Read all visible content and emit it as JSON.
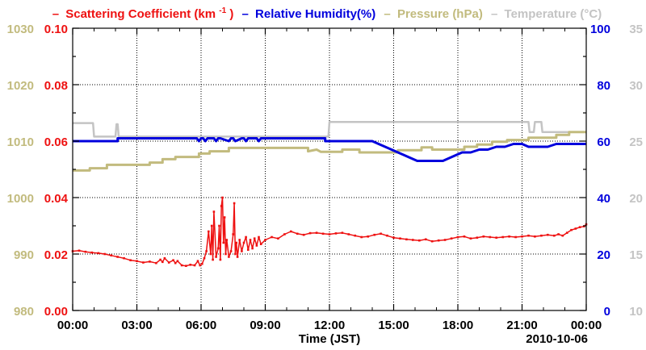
{
  "colors": {
    "scattering": "#ee1111",
    "humidity": "#0000dd",
    "pressure": "#c2bb7e",
    "temperature": "#c4c4c4",
    "axis": "#000000"
  },
  "legend": {
    "dash": "–",
    "scattering_label": "Scattering Coefficient (km",
    "scattering_sup": "-1",
    "scattering_close": ")",
    "humidity_label": "Relative Humidity(%)",
    "pressure_label": "Pressure (hPa)",
    "temperature_label": "Temperature (°C)"
  },
  "chart_data": {
    "type": "line",
    "xlabel": "Time (JST)",
    "date_label": "2010-10-06",
    "x_unit": "hours",
    "xlim": [
      0,
      24
    ],
    "x_ticks": [
      0,
      3,
      6,
      9,
      12,
      15,
      18,
      21,
      24
    ],
    "x_tick_labels": [
      "00:00",
      "03:00",
      "06:00",
      "09:00",
      "12:00",
      "15:00",
      "18:00",
      "21:00",
      "00:00"
    ],
    "grid": true,
    "axes": {
      "scattering": {
        "range": [
          0,
          0.1
        ],
        "ticks": [
          "0.00",
          "0.02",
          "0.04",
          "0.06",
          "0.08",
          "0.10"
        ],
        "side": "left-inner"
      },
      "pressure": {
        "range": [
          980,
          1030
        ],
        "ticks": [
          "980",
          "990",
          "1000",
          "1010",
          "1020",
          "1030"
        ],
        "side": "left-outer"
      },
      "humidity": {
        "range": [
          0,
          100
        ],
        "ticks": [
          "0",
          "20",
          "40",
          "60",
          "80",
          "100"
        ],
        "side": "right-inner"
      },
      "temperature": {
        "range": [
          10,
          35
        ],
        "ticks": [
          "10",
          "15",
          "20",
          "25",
          "30",
          "35"
        ],
        "side": "right-outer"
      }
    },
    "series": [
      {
        "name": "Temperature",
        "axis": "temperature",
        "x": [
          0,
          0.05,
          0.95,
          1.0,
          2.0,
          2.05,
          2.1,
          2.15,
          11.95,
          12.0,
          21.3,
          21.35,
          21.55,
          21.6,
          21.9,
          21.95,
          24.0
        ],
        "values": [
          26.6,
          26.6,
          26.6,
          25.4,
          25.4,
          26.5,
          26.5,
          25.4,
          25.4,
          26.7,
          26.7,
          25.8,
          25.8,
          26.7,
          26.7,
          25.8,
          25.8
        ]
      },
      {
        "name": "Pressure",
        "axis": "pressure",
        "x": [
          0,
          0.8,
          0.8,
          1.6,
          1.6,
          3.6,
          3.6,
          4.2,
          4.2,
          4.8,
          4.8,
          5.9,
          5.9,
          6.4,
          6.4,
          7.3,
          7.3,
          11.0,
          11.0,
          11.4,
          11.6,
          12.6,
          12.6,
          13.4,
          13.4,
          15.2,
          15.2,
          16.3,
          16.3,
          16.8,
          16.8,
          18.3,
          18.3,
          18.9,
          18.9,
          19.6,
          19.6,
          20.3,
          20.3,
          21.3,
          21.3,
          22.6,
          22.6,
          23.2,
          23.2,
          24.0
        ],
        "values": [
          1004.8,
          1004.8,
          1005.2,
          1005.2,
          1005.8,
          1005.8,
          1006.2,
          1006.2,
          1006.8,
          1006.8,
          1007.2,
          1007.2,
          1007.8,
          1007.8,
          1008.2,
          1008.2,
          1008.8,
          1008.8,
          1008.2,
          1008.5,
          1008.1,
          1008.1,
          1008.5,
          1008.5,
          1008.0,
          1008.0,
          1008.4,
          1008.4,
          1008.9,
          1008.9,
          1008.5,
          1008.5,
          1009.0,
          1009.0,
          1009.4,
          1009.4,
          1009.9,
          1009.9,
          1010.2,
          1010.2,
          1010.6,
          1010.6,
          1011.1,
          1011.1,
          1011.6,
          1011.6
        ]
      },
      {
        "name": "Relative Humidity",
        "axis": "humidity",
        "x": [
          0,
          2.1,
          2.1,
          5.8,
          5.9,
          6.0,
          6.1,
          6.2,
          6.3,
          6.6,
          6.7,
          6.8,
          6.9,
          7.3,
          7.4,
          7.5,
          7.6,
          7.9,
          8.0,
          8.1,
          8.2,
          8.6,
          8.7,
          8.8,
          9.0,
          11.8,
          11.8,
          14.0,
          14.3,
          14.6,
          14.9,
          15.2,
          15.5,
          15.8,
          16.1,
          17.3,
          17.6,
          17.9,
          18.2,
          18.6,
          19.0,
          19.4,
          19.8,
          20.2,
          20.6,
          21.0,
          21.3,
          22.2,
          22.6,
          23.0,
          24.0
        ],
        "values": [
          60,
          60,
          61,
          61,
          60,
          61,
          61,
          60,
          61,
          61,
          60,
          61,
          61,
          60,
          61,
          61,
          60,
          61,
          61,
          60,
          61,
          61,
          60,
          61,
          61,
          61,
          60,
          60,
          59,
          58,
          57,
          56,
          55,
          54,
          53,
          53,
          54,
          55,
          56,
          56,
          57,
          57,
          58,
          58,
          59,
          59,
          58,
          58,
          59,
          59,
          59
        ]
      },
      {
        "name": "Scattering Coefficient",
        "axis": "scattering",
        "x": [
          0,
          0.3,
          0.6,
          0.9,
          1.2,
          1.5,
          1.8,
          2.1,
          2.4,
          2.7,
          3.0,
          3.3,
          3.6,
          3.9,
          4.1,
          4.2,
          4.3,
          4.5,
          4.7,
          4.8,
          4.9,
          5.1,
          5.3,
          5.5,
          5.7,
          5.85,
          5.95,
          6.05,
          6.15,
          6.25,
          6.35,
          6.45,
          6.5,
          6.55,
          6.6,
          6.7,
          6.8,
          6.85,
          6.9,
          6.95,
          7.0,
          7.05,
          7.1,
          7.15,
          7.2,
          7.3,
          7.4,
          7.5,
          7.55,
          7.6,
          7.65,
          7.7,
          7.8,
          7.9,
          8.0,
          8.1,
          8.2,
          8.3,
          8.4,
          8.5,
          8.6,
          8.7,
          8.8,
          9.0,
          9.3,
          9.6,
          9.9,
          10.2,
          10.5,
          10.8,
          11.1,
          11.4,
          11.7,
          12.0,
          12.3,
          12.6,
          12.9,
          13.2,
          13.5,
          13.8,
          14.1,
          14.4,
          14.7,
          15.0,
          15.3,
          15.6,
          15.9,
          16.2,
          16.5,
          16.8,
          17.1,
          17.4,
          17.7,
          18.0,
          18.3,
          18.6,
          18.9,
          19.2,
          19.5,
          19.8,
          20.1,
          20.4,
          20.7,
          21.0,
          21.3,
          21.6,
          21.9,
          22.2,
          22.5,
          22.7,
          22.9,
          23.1,
          23.3,
          23.5,
          23.7,
          23.9,
          24.0
        ],
        "values": [
          0.021,
          0.0212,
          0.0208,
          0.0205,
          0.0203,
          0.02,
          0.0195,
          0.019,
          0.0185,
          0.0178,
          0.0175,
          0.017,
          0.0173,
          0.0168,
          0.018,
          0.0172,
          0.0185,
          0.017,
          0.0178,
          0.0168,
          0.0175,
          0.016,
          0.0158,
          0.0162,
          0.016,
          0.0175,
          0.016,
          0.0165,
          0.0185,
          0.021,
          0.028,
          0.02,
          0.03,
          0.018,
          0.035,
          0.019,
          0.022,
          0.03,
          0.018,
          0.037,
          0.04,
          0.024,
          0.033,
          0.02,
          0.025,
          0.019,
          0.021,
          0.027,
          0.038,
          0.02,
          0.024,
          0.019,
          0.025,
          0.021,
          0.024,
          0.026,
          0.0215,
          0.025,
          0.022,
          0.0255,
          0.023,
          0.026,
          0.0235,
          0.025,
          0.026,
          0.0255,
          0.027,
          0.028,
          0.0272,
          0.0268,
          0.0274,
          0.0275,
          0.0272,
          0.027,
          0.0273,
          0.0275,
          0.027,
          0.0265,
          0.026,
          0.0262,
          0.0268,
          0.0272,
          0.0265,
          0.0258,
          0.0255,
          0.0252,
          0.025,
          0.0248,
          0.0252,
          0.0245,
          0.0248,
          0.025,
          0.0255,
          0.026,
          0.0262,
          0.0255,
          0.0258,
          0.0262,
          0.026,
          0.0258,
          0.026,
          0.0262,
          0.026,
          0.0262,
          0.0265,
          0.0262,
          0.0265,
          0.0268,
          0.0265,
          0.027,
          0.0265,
          0.0275,
          0.0285,
          0.029,
          0.0295,
          0.0298,
          0.0305
        ]
      }
    ]
  }
}
